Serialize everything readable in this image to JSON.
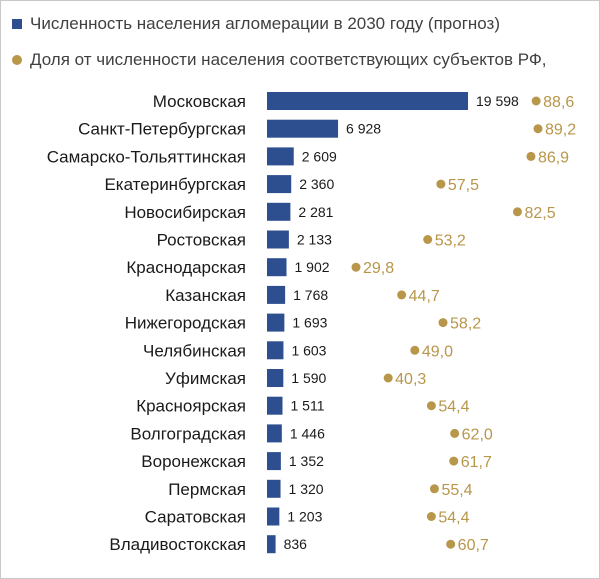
{
  "chart_data": {
    "type": "bar",
    "orientation": "horizontal",
    "legend": [
      {
        "name": "Численность населения агломерации в 2030 году (прогноз)",
        "color": "#2e4f8f",
        "marker": "square"
      },
      {
        "name": "Доля от численности населения соответствующих субъектов РФ,",
        "color": "#b8964a",
        "marker": "circle"
      }
    ],
    "categories": [
      "Московская",
      "Санкт-Петербургская",
      "Самарско-Тольяттинская",
      "Екатеринбургская",
      "Новосибирская",
      "Ростовская",
      "Краснодарская",
      "Казанская",
      "Нижегородская",
      "Челябинская",
      "Уфимская",
      "Красноярская",
      "Волгоградская",
      "Воронежская",
      "Пермская",
      "Саратовская",
      "Владивостокская"
    ],
    "series": [
      {
        "name": "Численность населения агломерации в 2030 году (прогноз)",
        "type": "bar",
        "values": [
          19598,
          6928,
          2609,
          2360,
          2281,
          2133,
          1902,
          1768,
          1693,
          1603,
          1590,
          1511,
          1446,
          1352,
          1320,
          1203,
          836
        ],
        "labels": [
          "19 598",
          "6 928",
          "2 609",
          "2 360",
          "2 281",
          "2 133",
          "1 902",
          "1 768",
          "1 693",
          "1 603",
          "1 590",
          "1 511",
          "1 446",
          "1 352",
          "1 320",
          "1 203",
          "836"
        ]
      },
      {
        "name": "Доля от численности населения соответствующих субъектов РФ,",
        "type": "scatter",
        "values": [
          88.6,
          89.2,
          86.9,
          57.5,
          82.5,
          53.2,
          29.8,
          44.7,
          58.2,
          49.0,
          40.3,
          54.4,
          62.0,
          61.7,
          55.4,
          54.4,
          60.7
        ],
        "labels": [
          "88,6",
          "89,2",
          "86,9",
          "57,5",
          "82,5",
          "53,2",
          "29,8",
          "44,7",
          "58,2",
          "49,0",
          "40,3",
          "54,4",
          "62,0",
          "61,7",
          "55,4",
          "54,4",
          "60,7"
        ]
      }
    ],
    "bar_xlim": [
      0,
      19598
    ],
    "share_xlim": [
      29.8,
      89.2
    ],
    "grid": false,
    "legend_position": "top-left"
  }
}
